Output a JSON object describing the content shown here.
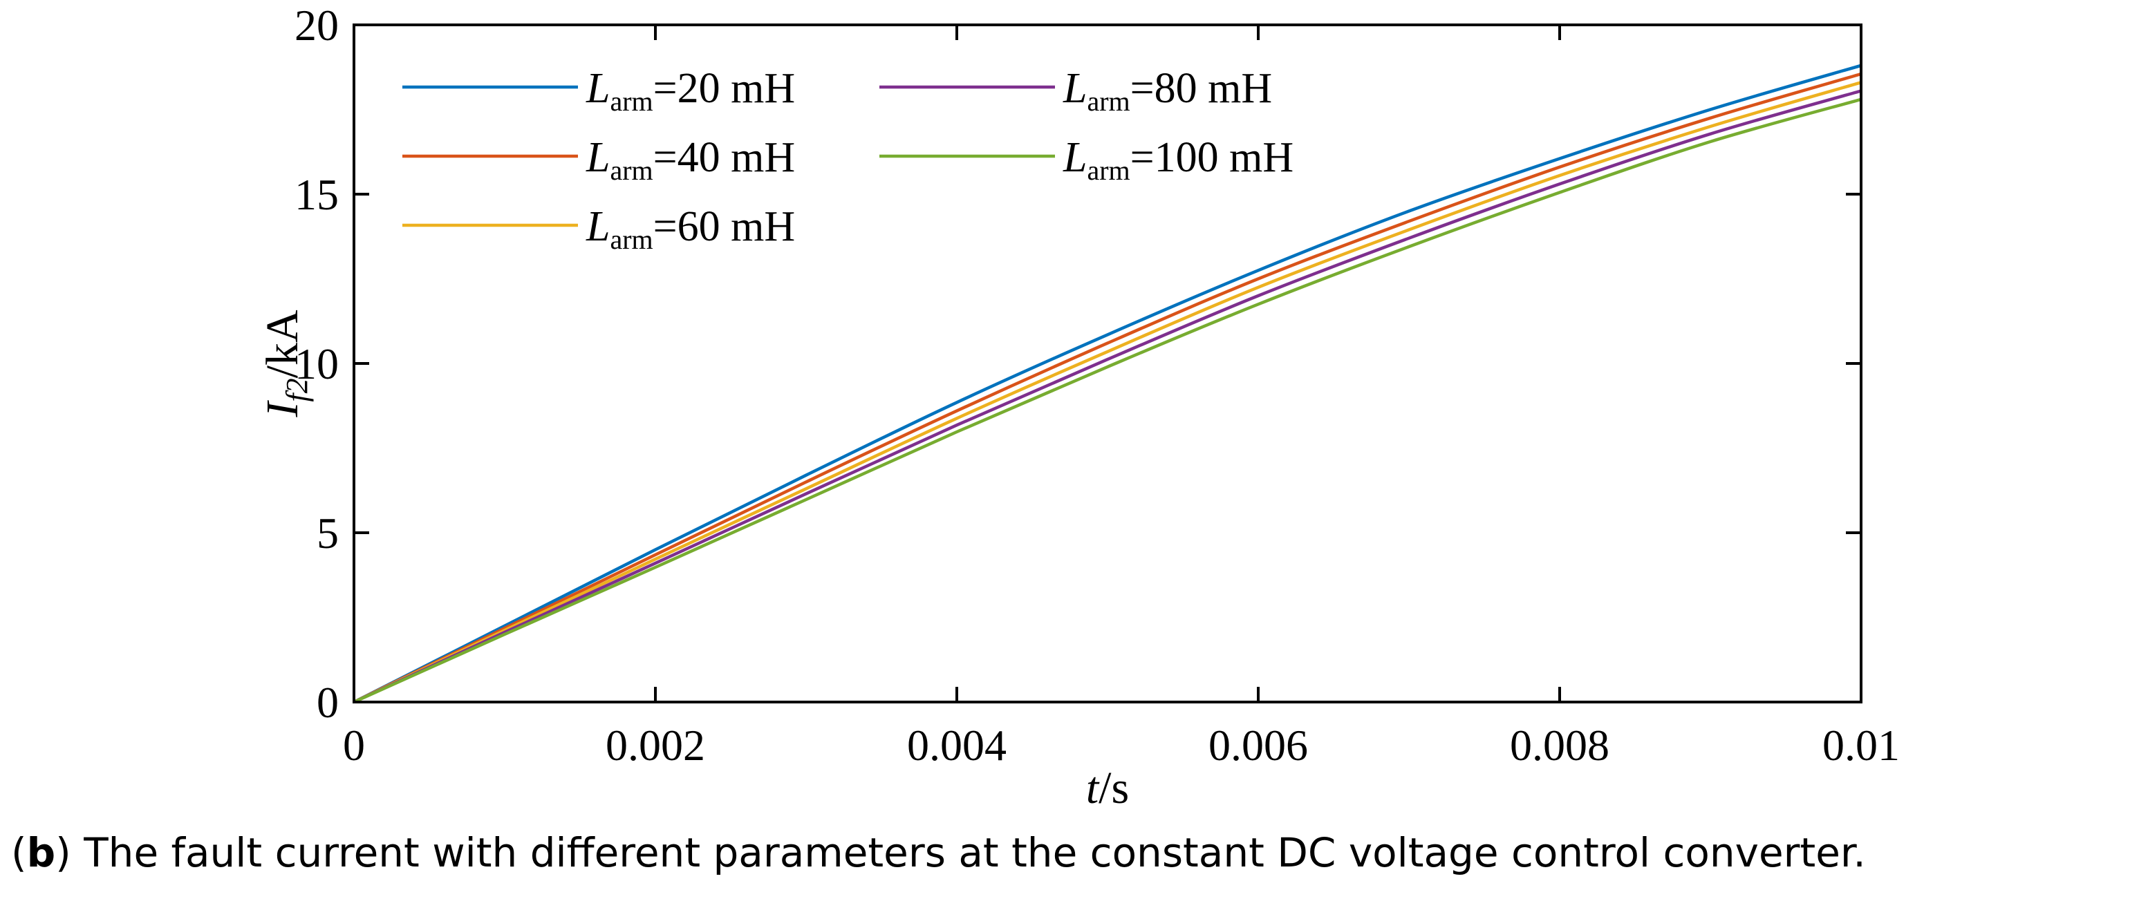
{
  "chart_data": {
    "type": "line",
    "title": "",
    "xlabel": {
      "var": "t",
      "unit": "/s"
    },
    "ylabel": {
      "var": "I",
      "sub": "f2",
      "unit": "/kA"
    },
    "xlim": [
      0,
      0.01
    ],
    "ylim": [
      0,
      20
    ],
    "xticks": [
      0,
      0.002,
      0.004,
      0.006,
      0.008,
      0.01
    ],
    "xtick_labels": [
      "0",
      "0.002",
      "0.004",
      "0.006",
      "0.008",
      "0.01"
    ],
    "yticks": [
      0,
      5,
      10,
      15,
      20
    ],
    "ytick_labels": [
      "0",
      "5",
      "10",
      "15",
      "20"
    ],
    "grid": false,
    "legend_position": "top-left",
    "x": [
      0,
      0.001,
      0.002,
      0.003,
      0.004,
      0.005,
      0.006,
      0.007,
      0.008,
      0.009,
      0.01
    ],
    "series": [
      {
        "name": "L",
        "sub": "arm",
        "suffix": "=20 mH",
        "color": "#0072BD",
        "values": [
          0,
          2.25,
          4.5,
          6.7,
          8.85,
          10.85,
          12.75,
          14.5,
          16.05,
          17.5,
          18.8
        ]
      },
      {
        "name": "L",
        "sub": "arm",
        "suffix": "=40 mH",
        "color": "#D95319",
        "values": [
          0,
          2.18,
          4.35,
          6.5,
          8.6,
          10.6,
          12.5,
          14.2,
          15.8,
          17.25,
          18.55
        ]
      },
      {
        "name": "L",
        "sub": "arm",
        "suffix": "=60 mH",
        "color": "#EDB120",
        "values": [
          0,
          2.12,
          4.22,
          6.3,
          8.38,
          10.35,
          12.25,
          13.95,
          15.55,
          17.0,
          18.3
        ]
      },
      {
        "name": "L",
        "sub": "arm",
        "suffix": "=80 mH",
        "color": "#7E2F8E",
        "values": [
          0,
          2.06,
          4.1,
          6.15,
          8.18,
          10.12,
          12.0,
          13.7,
          15.3,
          16.78,
          18.05
        ]
      },
      {
        "name": "L",
        "sub": "arm",
        "suffix": "=100 mH",
        "color": "#77AC30",
        "values": [
          0,
          2.0,
          3.98,
          5.98,
          7.98,
          9.9,
          11.75,
          13.45,
          15.05,
          16.55,
          17.8
        ]
      }
    ]
  },
  "caption": {
    "label": "b",
    "text": " The fault current with different parameters at the constant DC voltage control converter."
  }
}
